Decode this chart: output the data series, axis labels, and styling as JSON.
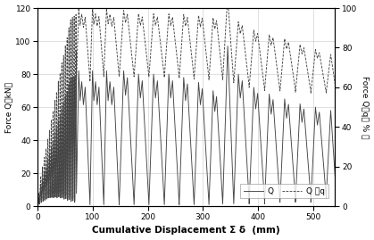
{
  "xlabel": "Cumulative Displacement Σ δ  (mm)",
  "ylabel_left": "Force Q （kN）",
  "ylabel_right": "Force Q山q（ % ）",
  "xlim": [
    0,
    540
  ],
  "ylim_left": [
    0,
    120
  ],
  "ylim_right": [
    0,
    100
  ],
  "yticks_left": [
    0,
    20,
    40,
    60,
    80,
    100,
    120
  ],
  "yticks_right": [
    0,
    20,
    40,
    60,
    80,
    100
  ],
  "xticks": [
    0,
    100,
    200,
    300,
    400,
    500
  ],
  "legend_Q": "Q",
  "legend_Qzq": "Q 山q",
  "line_color_Q": "#444444",
  "line_color_Qzq": "#444444",
  "background_color": "#ffffff",
  "grid_color": "#bbbbbb"
}
